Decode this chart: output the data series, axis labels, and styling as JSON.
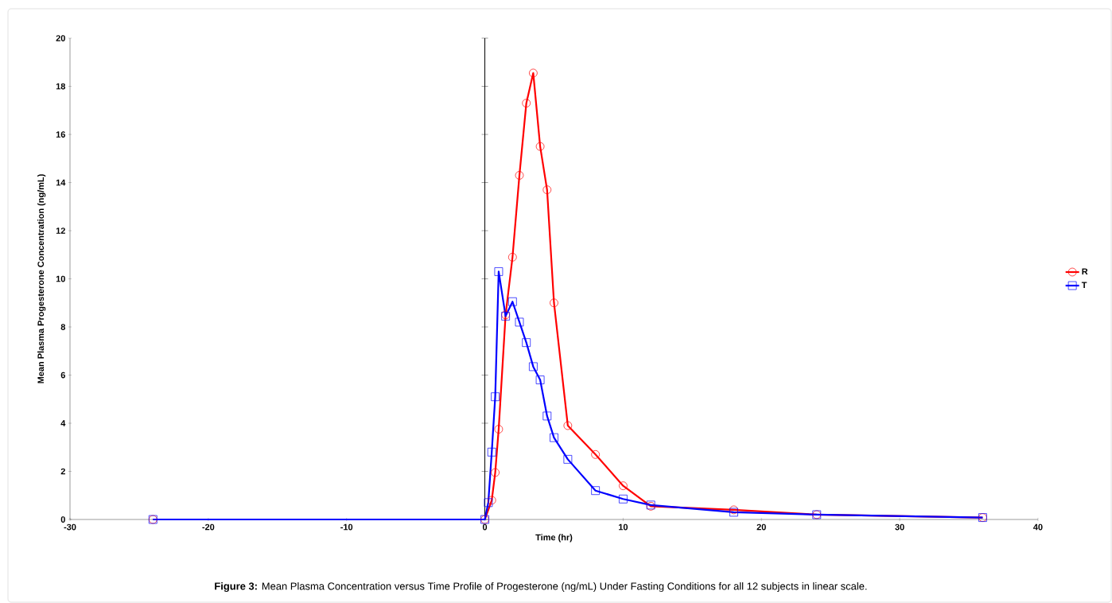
{
  "chart_data": {
    "type": "line",
    "xlabel": "Time (hr)",
    "ylabel": "Mean Plasma Progesterone Concentration (ng/mL)",
    "annotations": [
      "**Figure 3:** Mean Plasma Concentration versus Time Profile of Progesterone (ng/mL) Under Fasting Conditions for all 12 subjects in linear scale."
    ],
    "series": [
      {
        "name": "R",
        "color": "#ff0000",
        "marker": "circle",
        "x": [
          -24,
          0,
          0.5,
          0.75,
          1,
          1.5,
          2,
          2.5,
          3,
          3.5,
          4,
          4.5,
          5,
          6,
          8,
          10,
          12,
          18,
          24,
          36
        ],
        "values": [
          0,
          0,
          0.8,
          1.95,
          3.75,
          8.5,
          10.9,
          14.3,
          17.3,
          18.55,
          15.5,
          13.7,
          9.0,
          3.9,
          2.7,
          1.4,
          0.55,
          0.4,
          0.2,
          0.08
        ]
      },
      {
        "name": "T",
        "color": "#0000ff",
        "marker": "square",
        "x": [
          -24,
          0,
          0.25,
          0.5,
          0.75,
          1,
          1.5,
          2,
          2.5,
          3,
          3.5,
          4,
          4.5,
          5,
          6,
          8,
          10,
          12,
          18,
          24,
          36
        ],
        "values": [
          0,
          0,
          0.7,
          2.8,
          5.1,
          10.3,
          8.45,
          9.05,
          8.2,
          7.35,
          6.35,
          5.8,
          4.3,
          3.4,
          2.5,
          1.2,
          0.85,
          0.6,
          0.3,
          0.2,
          0.08
        ]
      }
    ],
    "xlim": [
      -30,
      40
    ],
    "xticks": [
      -30,
      -20,
      -10,
      0,
      10,
      20,
      30,
      40
    ],
    "ylim": [
      0,
      20
    ],
    "yticks": [
      0,
      2,
      4,
      6,
      8,
      10,
      12,
      14,
      16,
      18,
      20
    ],
    "ref_lines": [
      {
        "axis": "x",
        "value": 0,
        "color": "#000000"
      }
    ],
    "legend": "right",
    "grid": false,
    "line_style": "solid"
  }
}
